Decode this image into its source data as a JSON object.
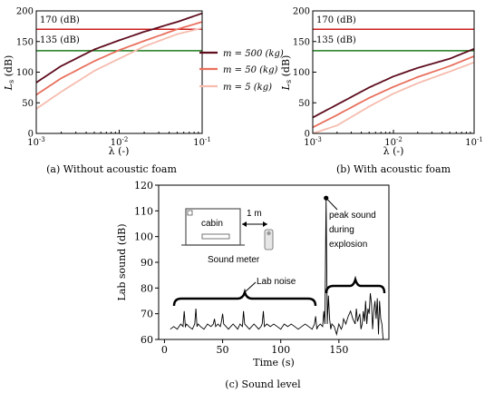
{
  "figure": {
    "caption_a": "(a) Without acoustic foam",
    "caption_b": "(b) With acoustic foam",
    "caption_c": "(c) Sound level"
  },
  "colors": {
    "m500": "#5e0d1e",
    "m50": "#e8705e",
    "m5": "#f6bcae",
    "threshold_170": "#cc1f1f",
    "threshold_135": "#1e7b1e",
    "signal": "#000000"
  },
  "chart_data": [
    {
      "type": "line",
      "panel": "a",
      "xscale": "log",
      "xlim": [
        0.001,
        0.1
      ],
      "ylim": [
        0,
        200
      ],
      "xlabel": "λ (-)",
      "ylabel": "L_s (dB)",
      "xticks": [
        "10^-3",
        "10^-2",
        "10^-1"
      ],
      "yticks": [
        0,
        50,
        100,
        150,
        200
      ],
      "legend": "center-right",
      "hlines": [
        {
          "label": "170 (dB)",
          "y": 170
        },
        {
          "label": "135 (dB)",
          "y": 135
        }
      ],
      "series": [
        {
          "name": "m = 500 (kg)",
          "x": [
            0.001,
            0.002,
            0.005,
            0.01,
            0.02,
            0.05,
            0.1
          ],
          "y": [
            83,
            110,
            137,
            152,
            166,
            182,
            196
          ]
        },
        {
          "name": "m = 50 (kg)",
          "x": [
            0.001,
            0.002,
            0.005,
            0.01,
            0.02,
            0.05,
            0.1
          ],
          "y": [
            63,
            90,
            118,
            136,
            151,
            170,
            182
          ]
        },
        {
          "name": "m = 5 (kg)",
          "x": [
            0.001,
            0.002,
            0.005,
            0.01,
            0.02,
            0.05,
            0.1
          ],
          "y": [
            40,
            68,
            102,
            122,
            142,
            162,
            172
          ]
        }
      ]
    },
    {
      "type": "line",
      "panel": "b",
      "xscale": "log",
      "xlim": [
        0.001,
        0.1
      ],
      "ylim": [
        0,
        200
      ],
      "xlabel": "λ (-)",
      "ylabel": "L_s (dB)",
      "xticks": [
        "10^-3",
        "10^-2",
        "10^-1"
      ],
      "yticks": [
        0,
        50,
        100,
        150,
        200
      ],
      "hlines": [
        {
          "label": "170 (dB)",
          "y": 170
        },
        {
          "label": "135 (dB)",
          "y": 135
        }
      ],
      "series": [
        {
          "name": "m = 500 (kg)",
          "x": [
            0.001,
            0.002,
            0.005,
            0.01,
            0.02,
            0.05,
            0.1
          ],
          "y": [
            26,
            47,
            75,
            93,
            107,
            122,
            138
          ]
        },
        {
          "name": "m = 50 (kg)",
          "x": [
            0.001,
            0.002,
            0.005,
            0.01,
            0.02,
            0.05,
            0.1
          ],
          "y": [
            10,
            30,
            58,
            76,
            92,
            110,
            126
          ]
        },
        {
          "name": "m = 5 (kg)",
          "x": [
            0.001,
            0.002,
            0.005,
            0.01,
            0.02,
            0.05,
            0.1
          ],
          "y": [
            0,
            13,
            44,
            65,
            82,
            101,
            116
          ]
        }
      ]
    },
    {
      "type": "line",
      "panel": "c",
      "xlim": [
        -5,
        193
      ],
      "ylim": [
        60,
        120
      ],
      "xlabel": "Time (s)",
      "ylabel": "Lab sound (dB)",
      "xticks": [
        0,
        50,
        100,
        150
      ],
      "yticks": [
        60,
        70,
        80,
        90,
        100,
        110,
        120
      ],
      "annotations": [
        "peak sound",
        "during",
        "explosion",
        "Lab noise",
        "1 m",
        "cabin",
        "Sound meter"
      ],
      "peak": {
        "x": 139,
        "y": 115
      },
      "series": [
        {
          "x": [
            5,
            8,
            11,
            14,
            16,
            17,
            18,
            19,
            21,
            24,
            26,
            27,
            28,
            29,
            31,
            34,
            37,
            40,
            42,
            43,
            44,
            46,
            48,
            49,
            50,
            51,
            53,
            55,
            57,
            59,
            61,
            63,
            65,
            67,
            68,
            69,
            71,
            73,
            75,
            77,
            79,
            81,
            83,
            84,
            85,
            86,
            88,
            91,
            94,
            97,
            100,
            103,
            106,
            109,
            112,
            115,
            118,
            121,
            124,
            127,
            129,
            130,
            131,
            132,
            134,
            136,
            137,
            138,
            139,
            140,
            141,
            142,
            143,
            144,
            146,
            148,
            150,
            152,
            153,
            154,
            156,
            158,
            160,
            162,
            164,
            165,
            166,
            168,
            169,
            170,
            171,
            172,
            173,
            174,
            175,
            176,
            177,
            178,
            179,
            180,
            181,
            182,
            183,
            184,
            185,
            186,
            187,
            188
          ],
          "y": [
            64,
            65,
            64,
            66,
            65,
            71,
            65,
            66,
            65,
            64,
            66,
            72,
            65,
            66,
            65,
            64,
            66,
            65,
            66,
            68,
            65,
            66,
            65,
            67,
            70,
            66,
            65,
            64,
            65,
            66,
            65,
            64,
            66,
            65,
            71,
            66,
            65,
            64,
            65,
            66,
            65,
            64,
            65,
            66,
            71,
            65,
            66,
            65,
            66,
            65,
            64,
            66,
            65,
            66,
            65,
            64,
            65,
            66,
            65,
            64,
            66,
            69,
            64,
            65,
            66,
            65,
            71,
            66,
            115,
            66,
            77,
            68,
            64,
            66,
            65,
            62,
            66,
            64,
            65,
            68,
            66,
            69,
            71,
            68,
            66,
            72,
            67,
            70,
            64,
            66,
            71,
            67,
            75,
            66,
            72,
            70,
            78,
            74,
            64,
            71,
            75,
            68,
            76,
            62,
            75,
            68,
            66,
            60
          ]
        }
      ]
    }
  ]
}
